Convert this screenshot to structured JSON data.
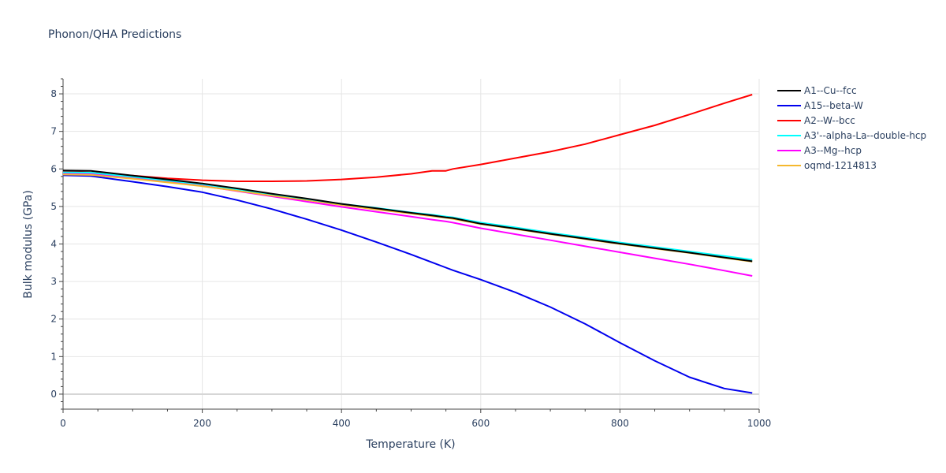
{
  "chart_data": {
    "type": "line",
    "title": "Phonon/QHA Predictions",
    "xlabel": "Temperature (K)",
    "ylabel": "Bulk modulus (GPa)",
    "xlim": [
      0,
      1000
    ],
    "ylim": [
      -0.4,
      8.4
    ],
    "xticks": [
      0,
      200,
      400,
      600,
      800,
      1000
    ],
    "yticks": [
      0,
      1,
      2,
      3,
      4,
      5,
      6,
      7,
      8
    ],
    "grid": true,
    "legend_position": "right",
    "x": [
      0,
      40,
      100,
      150,
      200,
      250,
      300,
      350,
      400,
      450,
      500,
      530,
      550,
      560,
      600,
      650,
      700,
      750,
      800,
      850,
      900,
      950,
      990
    ],
    "series": [
      {
        "name": "A1--Cu--fcc",
        "color": "#000000",
        "values": [
          5.96,
          5.95,
          5.82,
          5.72,
          5.61,
          5.48,
          5.34,
          5.21,
          5.07,
          4.95,
          4.83,
          4.76,
          4.71,
          4.69,
          4.54,
          4.41,
          4.27,
          4.14,
          4.01,
          3.89,
          3.77,
          3.64,
          3.54
        ]
      },
      {
        "name": "A15--beta-W",
        "color": "#0000ee",
        "values": [
          5.83,
          5.81,
          5.66,
          5.53,
          5.38,
          5.17,
          4.93,
          4.66,
          4.37,
          4.05,
          3.72,
          3.51,
          3.37,
          3.3,
          3.05,
          2.71,
          2.32,
          1.87,
          1.37,
          0.89,
          0.45,
          0.15,
          0.03
        ]
      },
      {
        "name": "A2--W--bcc",
        "color": "#ff0000",
        "values": [
          5.93,
          5.9,
          5.82,
          5.75,
          5.7,
          5.67,
          5.67,
          5.68,
          5.72,
          5.78,
          5.87,
          5.95,
          5.95,
          6.0,
          6.12,
          6.29,
          6.46,
          6.66,
          6.91,
          7.16,
          7.45,
          7.75,
          7.98
        ]
      },
      {
        "name": "A3'--alpha-La--double-hcp",
        "color": "#00ffff",
        "values": [
          5.91,
          5.9,
          5.79,
          5.69,
          5.59,
          5.46,
          5.33,
          5.2,
          5.07,
          4.96,
          4.84,
          4.78,
          4.73,
          4.71,
          4.57,
          4.44,
          4.3,
          4.17,
          4.04,
          3.92,
          3.8,
          3.68,
          3.58
        ]
      },
      {
        "name": "A3--Mg--hcp",
        "color": "#ff00ff",
        "values": [
          5.89,
          5.87,
          5.76,
          5.66,
          5.55,
          5.41,
          5.27,
          5.13,
          4.99,
          4.86,
          4.73,
          4.65,
          4.6,
          4.57,
          4.42,
          4.26,
          4.1,
          3.94,
          3.78,
          3.62,
          3.46,
          3.29,
          3.15
        ]
      },
      {
        "name": "oqmd-1214813",
        "color": "#f5b82e",
        "values": [
          5.85,
          5.84,
          5.74,
          5.64,
          5.54,
          5.42,
          5.29,
          5.17,
          5.04,
          4.92,
          4.81,
          4.74,
          4.7,
          4.67,
          4.53,
          4.4,
          4.26,
          4.13,
          4.0,
          3.88,
          3.76,
          3.63,
          3.53
        ]
      }
    ]
  }
}
